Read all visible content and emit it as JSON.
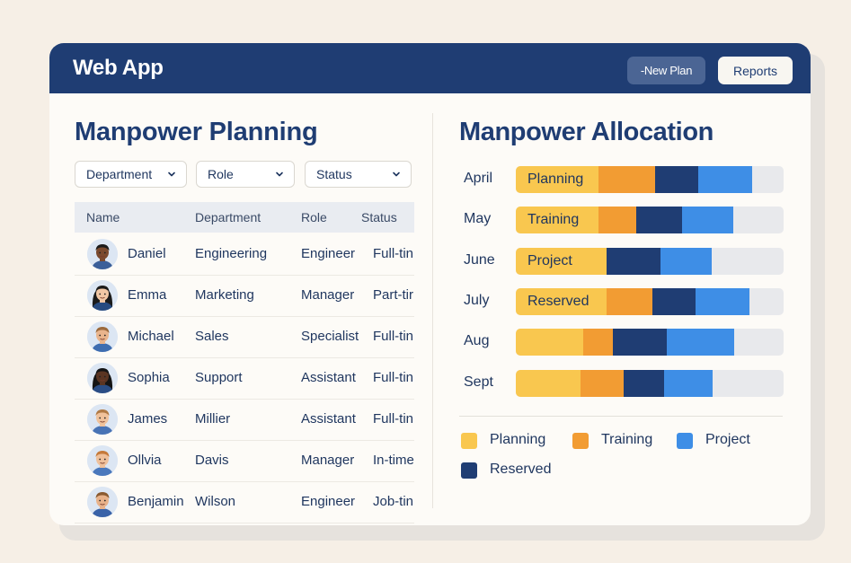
{
  "app": {
    "title": "Web App",
    "new_plan_label": "-New Plan",
    "reports_label": "Reports"
  },
  "planning": {
    "title": "Manpower Planning",
    "filters": [
      "Department",
      "Role",
      "Status"
    ],
    "columns": [
      "Name",
      "Department",
      "Role",
      "Status"
    ],
    "rows": [
      {
        "name": "Daniel",
        "department": "Engineering",
        "role": "Engineer",
        "status": "Full-tin"
      },
      {
        "name": "Emma",
        "department": "Marketing",
        "role": "Manager",
        "status": "Part-tir"
      },
      {
        "name": "Michael",
        "department": "Sales",
        "role": "Specialist",
        "status": "Full-tin"
      },
      {
        "name": "Sophia",
        "department": "Support",
        "role": "Assistant",
        "status": "Full-tin"
      },
      {
        "name": "James",
        "department": "Millier",
        "role": "Assistant",
        "status": "Full-tin"
      },
      {
        "name": "Ollvia",
        "department": "Davis",
        "role": "Manager",
        "status": "In-time"
      },
      {
        "name": "Benjamin",
        "department": "Wilson",
        "role": "Engineer",
        "status": "Job-tin"
      }
    ]
  },
  "allocation": {
    "title": "Manpower Allocation",
    "colors": {
      "Planning": "#f9c74f",
      "Training": "#f29c33",
      "Project": "#3e8ee6",
      "Reserved": "#1f3d73",
      "track": "#e8e9ec"
    },
    "legend": [
      "Planning",
      "Training",
      "Project",
      "Reserved"
    ],
    "rows": [
      {
        "month": "April",
        "label": "Planning",
        "segments": [
          [
            "Planning",
            0.31
          ],
          [
            "Training",
            0.21
          ],
          [
            "Reserved",
            0.16
          ],
          [
            "Project",
            0.2
          ]
        ]
      },
      {
        "month": "May",
        "label": "Training",
        "segments": [
          [
            "Planning",
            0.31
          ],
          [
            "Training",
            0.14
          ],
          [
            "Reserved",
            0.17
          ],
          [
            "Project",
            0.19
          ]
        ]
      },
      {
        "month": "June",
        "label": "Project",
        "segments": [
          [
            "Planning",
            0.34
          ],
          [
            "Reserved",
            0.2
          ],
          [
            "Project",
            0.19
          ]
        ]
      },
      {
        "month": "July",
        "label": "Reserved",
        "segments": [
          [
            "Planning",
            0.34
          ],
          [
            "Training",
            0.17
          ],
          [
            "Reserved",
            0.16
          ],
          [
            "Project",
            0.2
          ]
        ]
      },
      {
        "month": "Aug",
        "label": "",
        "segments": [
          [
            "Planning",
            0.25
          ],
          [
            "Training",
            0.11
          ],
          [
            "Reserved",
            0.2
          ],
          [
            "Project",
            0.25
          ]
        ]
      },
      {
        "month": "Sept",
        "label": "",
        "segments": [
          [
            "Planning",
            0.24
          ],
          [
            "Training",
            0.16
          ],
          [
            "Reserved",
            0.15
          ],
          [
            "Project",
            0.18
          ]
        ]
      }
    ]
  }
}
